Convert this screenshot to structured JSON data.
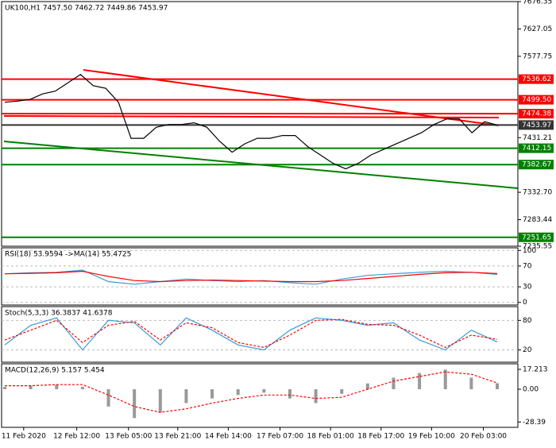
{
  "chart_data": [
    {
      "type": "line",
      "title": "UK100,H1  7457.50 7462.72 7449.86 7453.97",
      "xlim": [
        0,
        39
      ],
      "xticks": [
        {
          "value": 1.5,
          "label": "11 Feb 2020"
        },
        {
          "value": 5.7,
          "label": "12 Feb 12:00"
        },
        {
          "value": 9.8,
          "label": "13 Feb 05:00"
        },
        {
          "value": 13.7,
          "label": "13 Feb 21:00"
        },
        {
          "value": 17.7,
          "label": "14 Feb 14:00"
        },
        {
          "value": 21.8,
          "label": "17 Feb 07:00"
        },
        {
          "value": 25.8,
          "label": "18 Feb 01:00"
        },
        {
          "value": 29.8,
          "label": "18 Feb 17:00"
        },
        {
          "value": 33.8,
          "label": "19 Feb 10:00"
        },
        {
          "value": 37.9,
          "label": "20 Feb 03:00"
        }
      ],
      "ylim": [
        7235.55,
        7676.35
      ],
      "yticks": [
        7676.35,
        7627.05,
        7577.75,
        7431.21,
        {
          "value": 7332.7,
          "label": "7332.70"
        },
        7283.44,
        7235.55
      ],
      "series": [
        {
          "color": "#000000",
          "values": [
            7495,
            7497,
            7500,
            7510,
            7515,
            7530,
            7545,
            7525,
            7520,
            7495,
            7430,
            7430,
            7450,
            7455,
            7455,
            7458,
            7450,
            7425,
            7405,
            7420,
            7430,
            7430,
            7435,
            7435,
            7415,
            7400,
            7385,
            7375,
            7385,
            7400,
            7410,
            7420,
            7430,
            7440,
            7455,
            7465,
            7465,
            7440,
            7460,
            7453.97
          ]
        }
      ],
      "levels": [
        {
          "value": 7536.62,
          "color": "#ff0000"
        },
        {
          "value": 7499.5,
          "label": "7499.50",
          "color": "#ff0000"
        },
        {
          "value": 7474.38,
          "color": "#ff0000"
        },
        {
          "value": 7453.97,
          "color": "#333333"
        },
        {
          "value": 7412.15,
          "color": "#008000"
        },
        {
          "value": 7382.67,
          "color": "#008000"
        },
        {
          "value": 7251.65,
          "color": "#008000"
        }
      ]
    },
    {
      "type": "line",
      "title": "RSI(18) 53.9594 ->MA(14) 55.4725",
      "xlim": [
        0,
        19
      ],
      "ylim": [
        -5,
        105
      ],
      "yticks": [
        100,
        70,
        30,
        0
      ],
      "series": [
        {
          "color": "#3a9ad9",
          "values": [
            55,
            57,
            58,
            62,
            40,
            35,
            40,
            45,
            42,
            40,
            42,
            38,
            35,
            45,
            52,
            55,
            58,
            60,
            58,
            53.9594
          ]
        },
        {
          "color": "#ff0000",
          "values": [
            55,
            56,
            57,
            60,
            50,
            42,
            40,
            42,
            43,
            42,
            41,
            40,
            40,
            42,
            46,
            50,
            54,
            57,
            58,
            55.4725
          ]
        }
      ]
    },
    {
      "type": "line",
      "title": "Stoch(5,3,3) 36.3837 41.6378",
      "xlim": [
        0,
        19
      ],
      "ylim": [
        -5,
        108
      ],
      "yticks": [
        80,
        20
      ],
      "series": [
        {
          "color": "#3a9ad9",
          "values": [
            30,
            70,
            85,
            20,
            80,
            75,
            30,
            85,
            60,
            30,
            20,
            60,
            85,
            80,
            70,
            75,
            40,
            20,
            60,
            36.3837
          ]
        },
        {
          "color": "#ff0000",
          "dashed": true,
          "values": [
            40,
            60,
            80,
            35,
            70,
            78,
            40,
            75,
            65,
            35,
            25,
            50,
            80,
            82,
            72,
            70,
            50,
            25,
            50,
            41.6378
          ]
        }
      ]
    },
    {
      "type": "macd",
      "title": "MACD(12,26,9) 5.157 5.454",
      "xlim": [
        0,
        19
      ],
      "ylim": [
        -33,
        22
      ],
      "yticks": [
        17.213,
        {
          "value": 0,
          "label": "0.00"
        },
        -28.39
      ],
      "series": [
        {
          "color": "#999999",
          "values": [
            2,
            3,
            4,
            2,
            -15,
            -25,
            -20,
            -12,
            -8,
            -5,
            -3,
            -8,
            -12,
            -4,
            5,
            10,
            14,
            17,
            10,
            5.157
          ]
        },
        {
          "color": "#ff0000",
          "dashed": true,
          "values": [
            3,
            3,
            4,
            4,
            -5,
            -15,
            -20,
            -17,
            -12,
            -8,
            -5,
            -5,
            -8,
            -7,
            0,
            7,
            11,
            15,
            13,
            5.454
          ]
        }
      ]
    }
  ]
}
